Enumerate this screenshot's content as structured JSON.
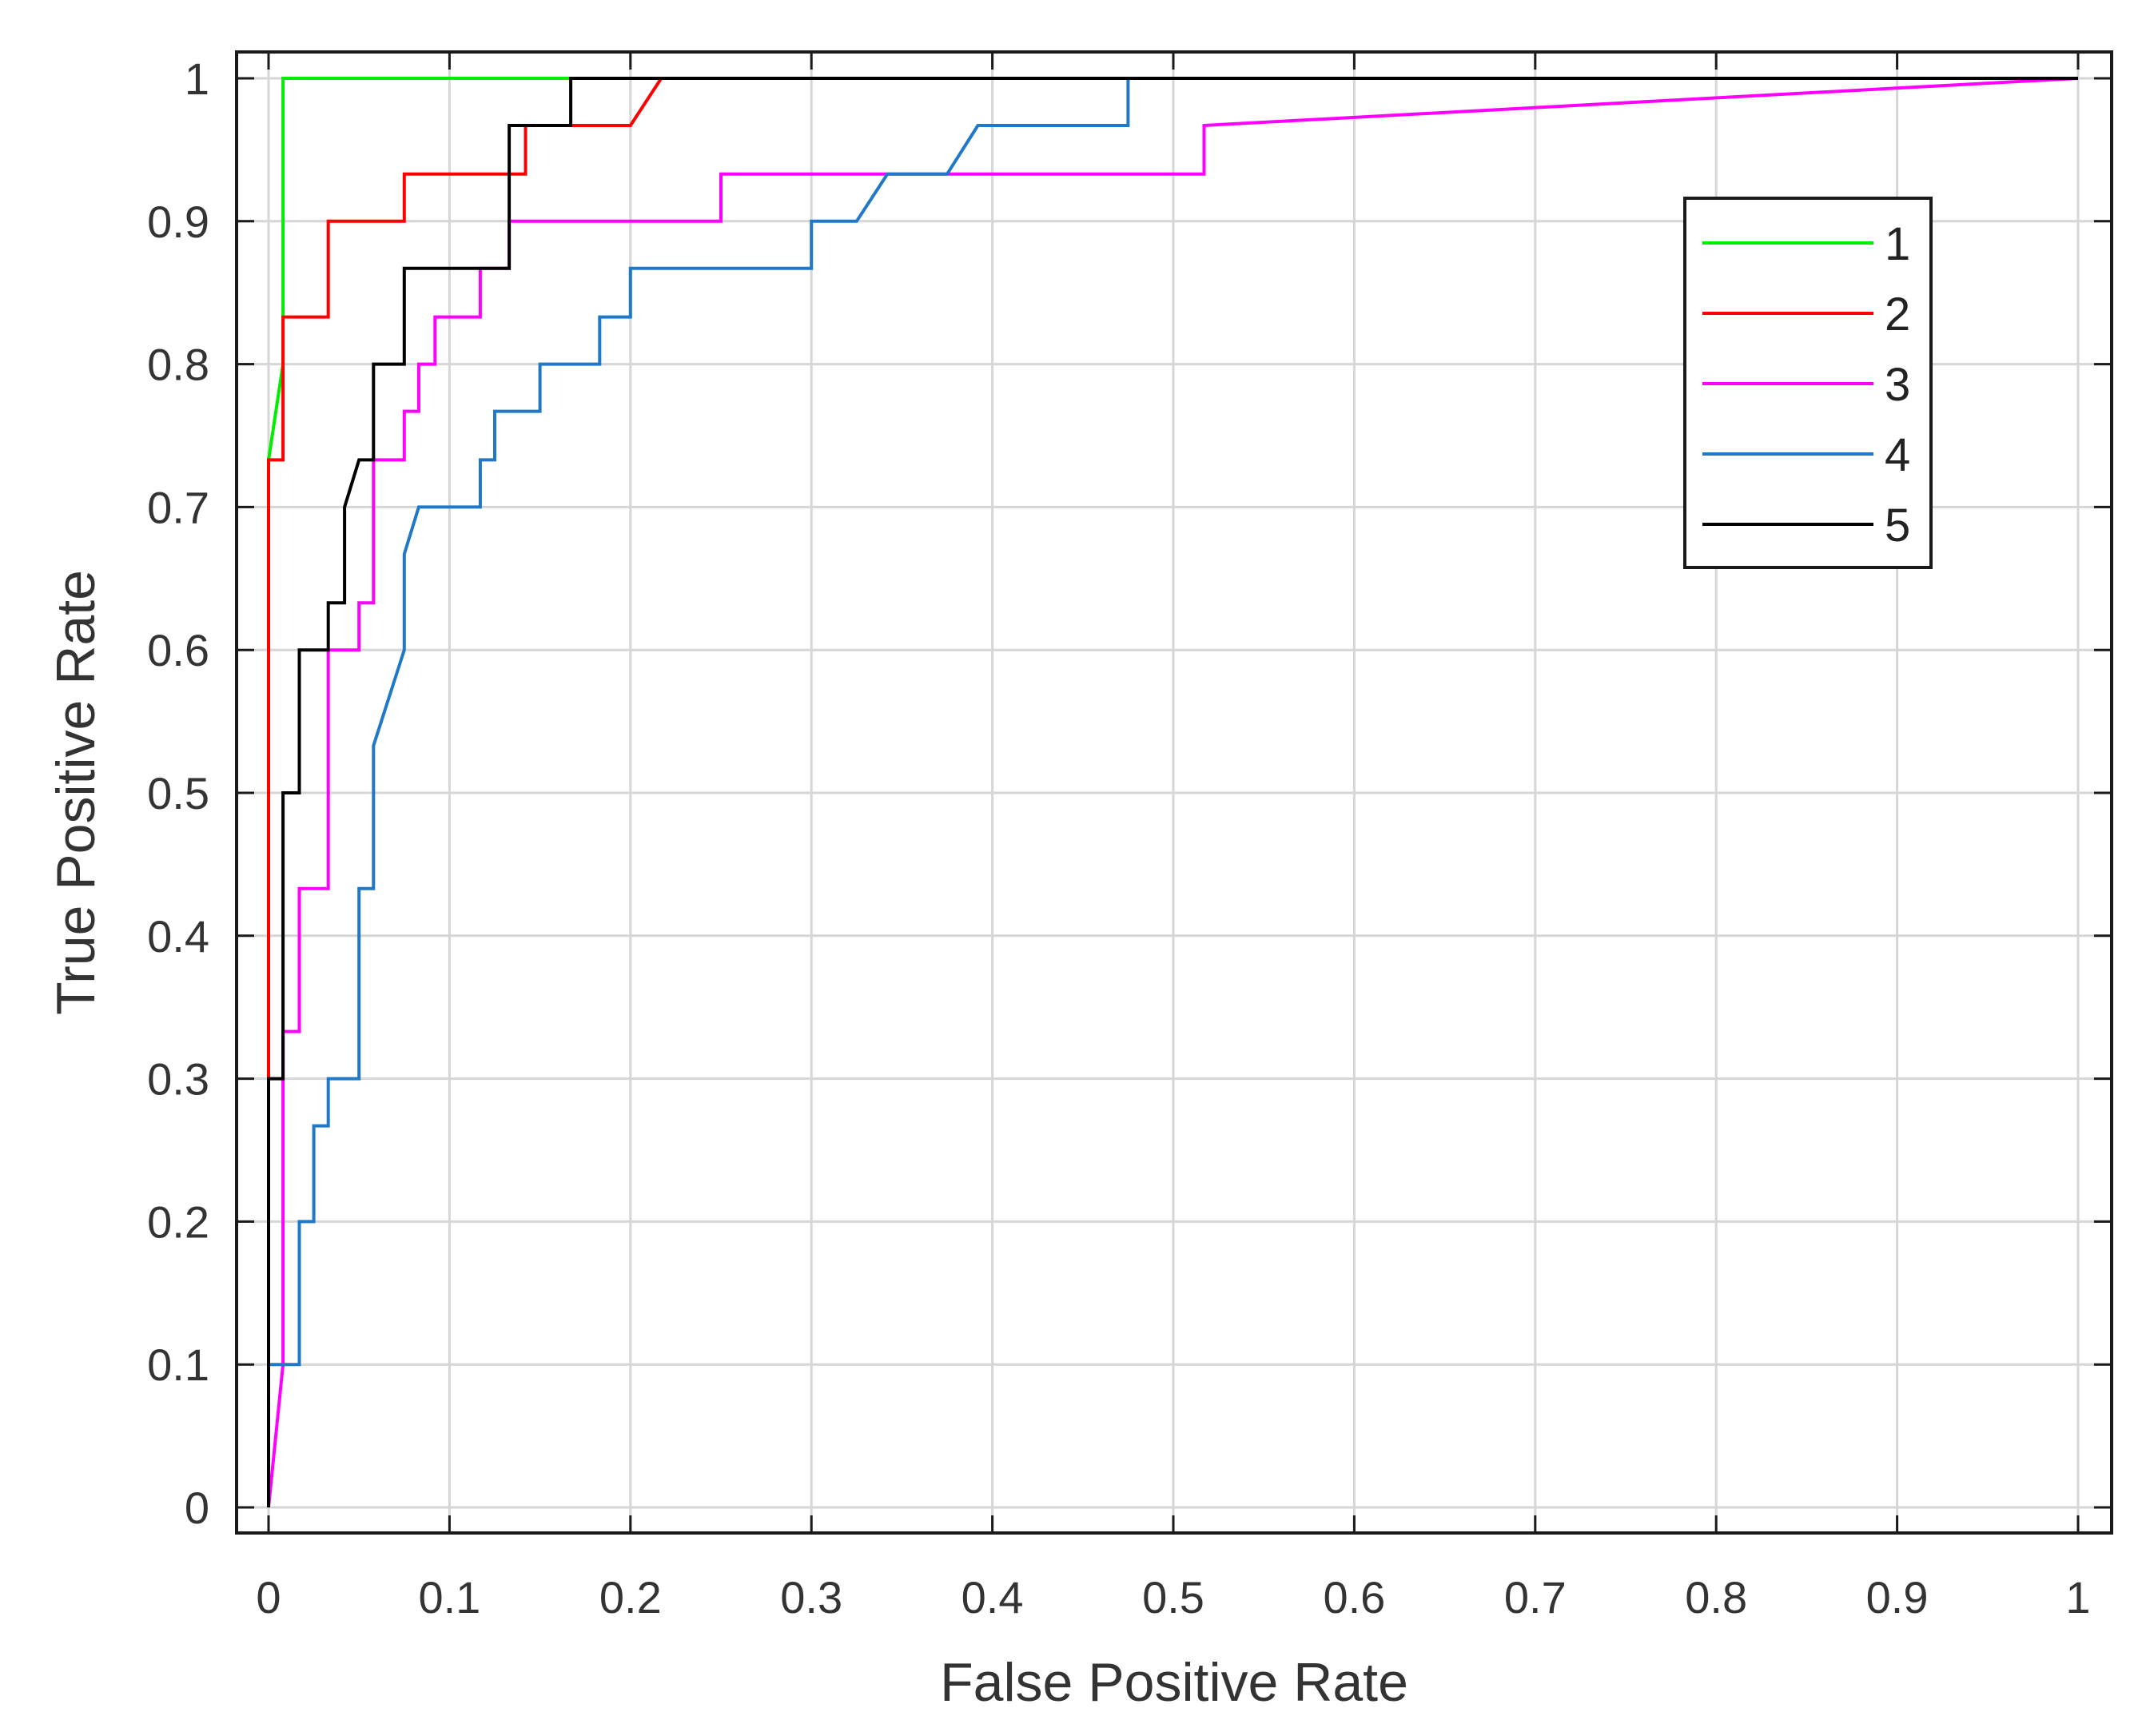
{
  "chart_data": {
    "type": "line",
    "title": "",
    "xlabel": "False Positive Rate",
    "ylabel": "True Positive Rate",
    "xlim": [
      0,
      1
    ],
    "ylim": [
      0,
      1
    ],
    "xticks": [
      "0",
      "0.1",
      "0.2",
      "0.3",
      "0.4",
      "0.5",
      "0.6",
      "0.7",
      "0.8",
      "0.9",
      "1"
    ],
    "yticks": [
      "0",
      "0.1",
      "0.2",
      "0.3",
      "0.4",
      "0.5",
      "0.6",
      "0.7",
      "0.8",
      "0.9",
      "1"
    ],
    "grid": true,
    "legend_position": "top-right",
    "series": [
      {
        "name": "1",
        "color": "#00ee00",
        "x": [
          0,
          0,
          0.008,
          0.008,
          0.167,
          1
        ],
        "y": [
          0,
          0.733,
          0.8,
          1.0,
          1.0,
          1.0
        ]
      },
      {
        "name": "2",
        "color": "#ff0000",
        "x": [
          0,
          0,
          0.008,
          0.008,
          0.033,
          0.033,
          0.075,
          0.075,
          0.142,
          0.142,
          0.2,
          0.217,
          1
        ],
        "y": [
          0,
          0.733,
          0.733,
          0.833,
          0.833,
          0.9,
          0.9,
          0.933,
          0.933,
          0.967,
          0.967,
          1.0,
          1.0
        ]
      },
      {
        "name": "3",
        "color": "#ff00ff",
        "x": [
          0,
          0.008,
          0.008,
          0.017,
          0.017,
          0.033,
          0.033,
          0.05,
          0.05,
          0.058,
          0.058,
          0.075,
          0.075,
          0.083,
          0.083,
          0.092,
          0.092,
          0.117,
          0.117,
          0.133,
          0.133,
          0.25,
          0.25,
          0.517,
          0.517,
          1
        ],
        "y": [
          0,
          0.1,
          0.333,
          0.333,
          0.433,
          0.433,
          0.6,
          0.6,
          0.633,
          0.633,
          0.733,
          0.733,
          0.767,
          0.767,
          0.8,
          0.8,
          0.833,
          0.833,
          0.867,
          0.867,
          0.9,
          0.9,
          0.933,
          0.933,
          0.967,
          1.0
        ]
      },
      {
        "name": "4",
        "color": "#1f78c8",
        "x": [
          0,
          0,
          0.017,
          0.017,
          0.025,
          0.025,
          0.033,
          0.033,
          0.05,
          0.05,
          0.058,
          0.058,
          0.075,
          0.075,
          0.083,
          0.117,
          0.117,
          0.125,
          0.125,
          0.15,
          0.15,
          0.183,
          0.183,
          0.2,
          0.2,
          0.3,
          0.3,
          0.325,
          0.342,
          0.375,
          0.392,
          0.475,
          0.475,
          1
        ],
        "y": [
          0,
          0.1,
          0.1,
          0.2,
          0.2,
          0.267,
          0.267,
          0.3,
          0.3,
          0.433,
          0.433,
          0.533,
          0.6,
          0.667,
          0.7,
          0.7,
          0.733,
          0.733,
          0.767,
          0.767,
          0.8,
          0.8,
          0.833,
          0.833,
          0.867,
          0.867,
          0.9,
          0.9,
          0.933,
          0.933,
          0.967,
          0.967,
          1.0,
          1.0
        ]
      },
      {
        "name": "5",
        "color": "#000000",
        "x": [
          0,
          0,
          0.008,
          0.008,
          0.017,
          0.017,
          0.033,
          0.033,
          0.042,
          0.042,
          0.05,
          0.058,
          0.058,
          0.075,
          0.075,
          0.133,
          0.133,
          0.167,
          0.167,
          1
        ],
        "y": [
          0,
          0.3,
          0.3,
          0.5,
          0.5,
          0.6,
          0.6,
          0.633,
          0.633,
          0.7,
          0.733,
          0.733,
          0.8,
          0.8,
          0.867,
          0.867,
          0.967,
          0.967,
          1.0,
          1.0
        ]
      }
    ]
  }
}
